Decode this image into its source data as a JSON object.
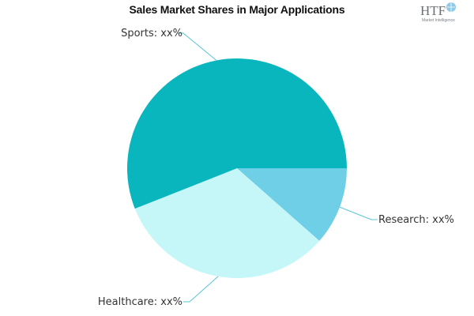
{
  "chart_data": {
    "type": "pie",
    "title": "Sales Market Shares in Major Applications",
    "slices": [
      {
        "label": "Research",
        "value_label": "xx%",
        "value": 11.5,
        "color": "#6ecfe6"
      },
      {
        "label": "Healthcare",
        "value_label": "xx%",
        "value": 32.5,
        "color": "#c5f6f8"
      },
      {
        "label": "Sports",
        "value_label": "xx%",
        "value": 56.0,
        "color": "#0ab6be"
      }
    ],
    "legend": "none",
    "start": "3 o'clock",
    "direction": "clockwise"
  },
  "logo": {
    "text": "HTF",
    "subtext": "Market Intelligence"
  }
}
